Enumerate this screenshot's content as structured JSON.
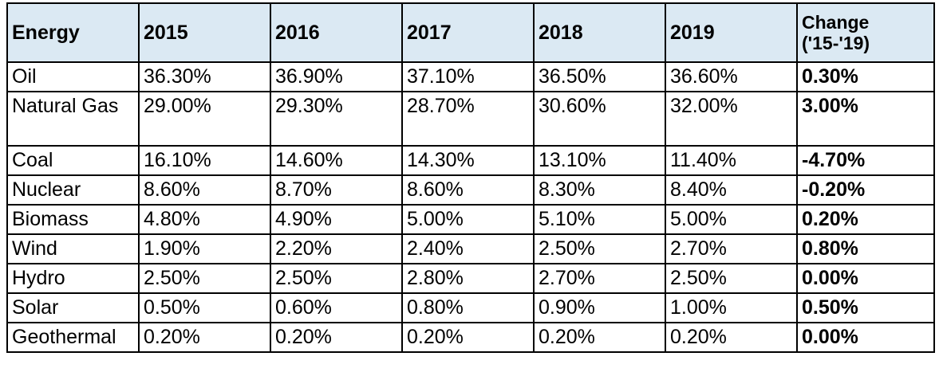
{
  "chart_data": {
    "type": "table",
    "columns": [
      "Energy",
      "2015",
      "2016",
      "2017",
      "2018",
      "2019",
      "Change\n('15-'19)"
    ],
    "rows": [
      {
        "energy": "Oil",
        "values": [
          "36.30%",
          "36.90%",
          "37.10%",
          "36.50%",
          "36.60%"
        ],
        "change": "0.30%"
      },
      {
        "energy": "Natural Gas",
        "values": [
          "29.00%",
          "29.30%",
          "28.70%",
          "30.60%",
          "32.00%"
        ],
        "change": "3.00%"
      },
      {
        "energy": "Coal",
        "values": [
          "16.10%",
          "14.60%",
          "14.30%",
          "13.10%",
          "11.40%"
        ],
        "change": "-4.70%"
      },
      {
        "energy": "Nuclear",
        "values": [
          "8.60%",
          "8.70%",
          "8.60%",
          "8.30%",
          "8.40%"
        ],
        "change": "-0.20%"
      },
      {
        "energy": "Biomass",
        "values": [
          "4.80%",
          "4.90%",
          "5.00%",
          "5.10%",
          "5.00%"
        ],
        "change": "0.20%"
      },
      {
        "energy": "Wind",
        "values": [
          "1.90%",
          "2.20%",
          "2.40%",
          "2.50%",
          "2.70%"
        ],
        "change": "0.80%"
      },
      {
        "energy": "Hydro",
        "values": [
          "2.50%",
          "2.50%",
          "2.80%",
          "2.70%",
          "2.50%"
        ],
        "change": "0.00%"
      },
      {
        "energy": "Solar",
        "values": [
          "0.50%",
          "0.60%",
          "0.80%",
          "0.90%",
          "1.00%"
        ],
        "change": "0.50%"
      },
      {
        "energy": "Geothermal",
        "values": [
          "0.20%",
          "0.20%",
          "0.20%",
          "0.20%",
          "0.20%"
        ],
        "change": "0.00%"
      }
    ]
  },
  "colors": {
    "header_bg": "#dbe9f3",
    "border": "#000000",
    "text": "#000000"
  }
}
